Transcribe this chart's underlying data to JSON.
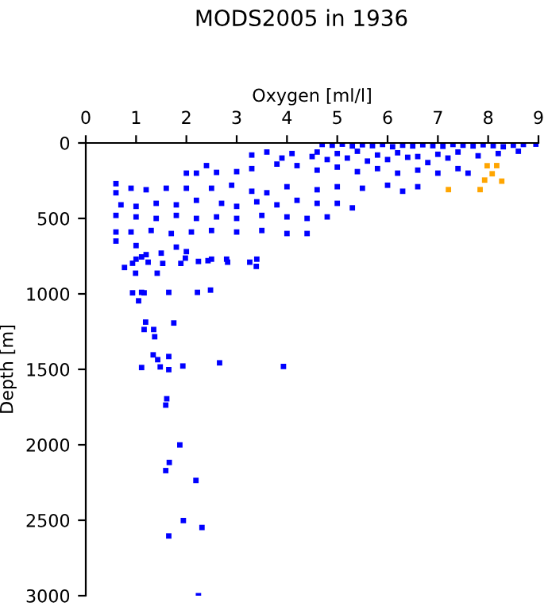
{
  "chart_data": {
    "type": "scatter",
    "title": "MODS2005 in 1936",
    "xlabel": "Oxygen [ml/l]",
    "ylabel": "Depth [m]",
    "xlim": [
      0,
      9
    ],
    "xticks": [
      0,
      1,
      2,
      3,
      4,
      5,
      6,
      7,
      8,
      9
    ],
    "ylim": [
      3000,
      0
    ],
    "yticks": [
      0,
      500,
      1000,
      1500,
      2000,
      2500,
      3000
    ],
    "grid": false,
    "marker": "square",
    "legend": false,
    "series": [
      {
        "color": "#0000ff",
        "x": [
          4.7,
          4.9,
          5.1,
          5.3,
          5.5,
          5.7,
          5.9,
          6.1,
          6.3,
          6.5,
          6.7,
          6.9,
          7.1,
          7.3,
          7.5,
          7.7,
          7.9,
          8.1,
          8.3,
          8.5,
          8.7,
          8.95,
          4.6,
          5.0,
          5.4,
          5.8,
          6.2,
          6.6,
          7.0,
          7.4,
          7.8,
          8.2,
          8.6,
          3.3,
          3.6,
          3.9,
          4.1,
          4.5,
          4.8,
          5.2,
          5.6,
          6.0,
          6.4,
          6.8,
          7.2,
          2.4,
          2.0,
          2.2,
          2.6,
          3.0,
          3.3,
          3.8,
          4.2,
          4.6,
          5.0,
          5.4,
          5.8,
          6.2,
          6.6,
          7.0,
          7.4,
          7.6,
          0.6,
          0.6,
          0.9,
          1.2,
          1.6,
          2.0,
          2.5,
          2.9,
          3.3,
          3.6,
          4.0,
          4.6,
          5.0,
          5.5,
          6.0,
          6.3,
          6.6,
          0.7,
          1.0,
          1.4,
          1.8,
          2.2,
          2.7,
          3.0,
          3.4,
          3.8,
          4.2,
          4.6,
          5.0,
          5.3,
          0.6,
          1.0,
          1.4,
          1.8,
          2.2,
          2.6,
          3.0,
          3.5,
          4.0,
          4.4,
          4.8,
          0.6,
          0.9,
          1.3,
          1.7,
          2.1,
          2.5,
          3.0,
          3.5,
          4.0,
          4.4,
          0.6,
          1.0,
          1.2,
          1.5,
          2.0,
          1.0,
          1.8,
          2.5,
          2.8,
          3.4,
          0.77,
          0.93,
          1.11,
          1.24,
          1.53,
          1.89,
          1.98,
          2.24,
          2.43,
          2.82,
          3.26,
          3.39,
          0.99,
          1.42,
          0.93,
          1.11,
          1.16,
          1.05,
          1.65,
          2.22,
          2.48,
          1.19,
          1.75,
          1.16,
          1.35,
          1.37,
          1.34,
          1.43,
          1.65,
          1.11,
          1.48,
          1.65,
          1.93,
          2.66,
          3.93,
          1.61,
          1.59,
          1.87,
          1.66,
          1.59,
          2.19,
          1.94,
          2.31,
          1.65,
          2.24
        ],
        "values": [
          10,
          15,
          8,
          20,
          12,
          18,
          10,
          25,
          15,
          20,
          12,
          18,
          22,
          10,
          15,
          20,
          12,
          18,
          25,
          15,
          10,
          8,
          60,
          70,
          55,
          80,
          65,
          90,
          75,
          60,
          85,
          70,
          55,
          80,
          60,
          100,
          70,
          90,
          110,
          100,
          120,
          110,
          95,
          130,
          100,
          150,
          200,
          200,
          195,
          190,
          170,
          140,
          150,
          180,
          160,
          190,
          170,
          200,
          180,
          200,
          170,
          200,
          270,
          330,
          300,
          310,
          300,
          300,
          300,
          280,
          320,
          330,
          290,
          310,
          290,
          300,
          280,
          320,
          290,
          410,
          420,
          400,
          410,
          380,
          400,
          420,
          390,
          410,
          380,
          400,
          400,
          430,
          480,
          490,
          500,
          480,
          500,
          490,
          500,
          480,
          490,
          500,
          490,
          590,
          590,
          580,
          600,
          590,
          580,
          590,
          580,
          600,
          600,
          650,
          770,
          740,
          730,
          720,
          680,
          690,
          770,
          770,
          770,
          825,
          797,
          755,
          790,
          798,
          798,
          763,
          785,
          780,
          790,
          790,
          818,
          863,
          863,
          993,
          990,
          993,
          1046,
          990,
          990,
          975,
          1187,
          1193,
          1236,
          1236,
          1284,
          1404,
          1436,
          1415,
          1488,
          1484,
          1502,
          1478,
          1457,
          1481,
          1695,
          1737,
          2001,
          2117,
          2171,
          2236,
          2502,
          2548,
          2604,
          3000
        ]
      },
      {
        "color": "#ffa500",
        "x": [
          7.98,
          8.17,
          8.08,
          7.93,
          8.27,
          7.21,
          7.84
        ],
        "values": [
          151,
          150,
          204,
          246,
          253,
          309,
          309
        ]
      }
    ]
  }
}
